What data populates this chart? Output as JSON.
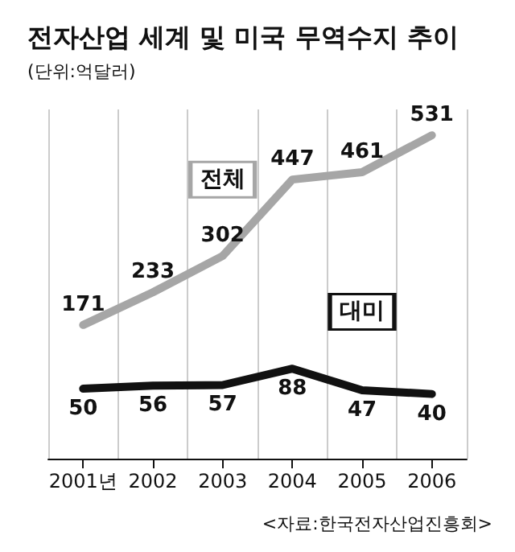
{
  "chart_data": {
    "type": "line",
    "title": "전자산업 세계 및 미국 무역수지 추이",
    "subtitle": "(단위:억달러)",
    "categories": [
      "2001년",
      "2002",
      "2003",
      "2004",
      "2005",
      "2006"
    ],
    "series": [
      {
        "name": "전체",
        "color": "#a6a6a6",
        "values": [
          171,
          233,
          302,
          447,
          461,
          531
        ]
      },
      {
        "name": "대미",
        "color": "#111111",
        "values": [
          50,
          56,
          57,
          88,
          47,
          40
        ]
      }
    ],
    "data_labels": true,
    "marker": "none",
    "grid": "x",
    "tick_labels": "x",
    "annotations": [
      "<자료:한국전자산업진흥회>"
    ]
  }
}
